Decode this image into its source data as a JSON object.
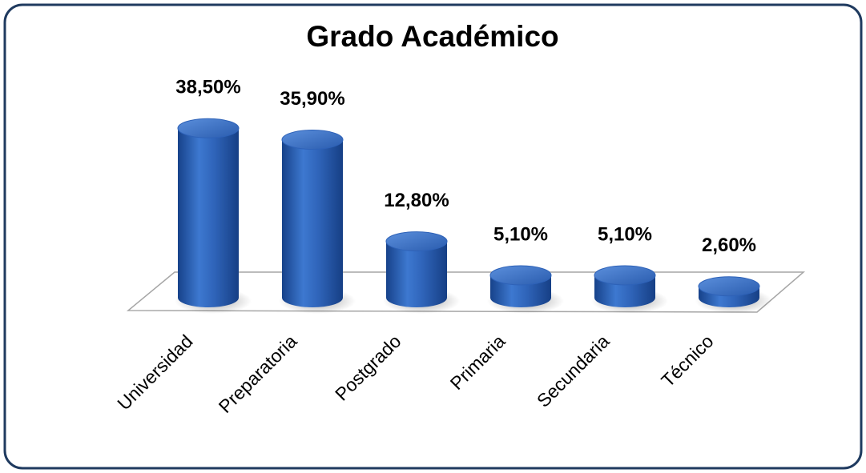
{
  "chart_data": {
    "type": "bar",
    "title": "Grado Académico",
    "categories": [
      "Universidad",
      "Preparatoria",
      "Postgrado",
      "Primaria",
      "Secundaria",
      "Técnico"
    ],
    "values": [
      38.5,
      35.9,
      12.8,
      5.1,
      5.1,
      2.6
    ],
    "value_labels": [
      "38,50%",
      "35,90%",
      "12,80%",
      "5,10%",
      "5,10%",
      "2,60%"
    ],
    "color": "#2e62b8"
  }
}
